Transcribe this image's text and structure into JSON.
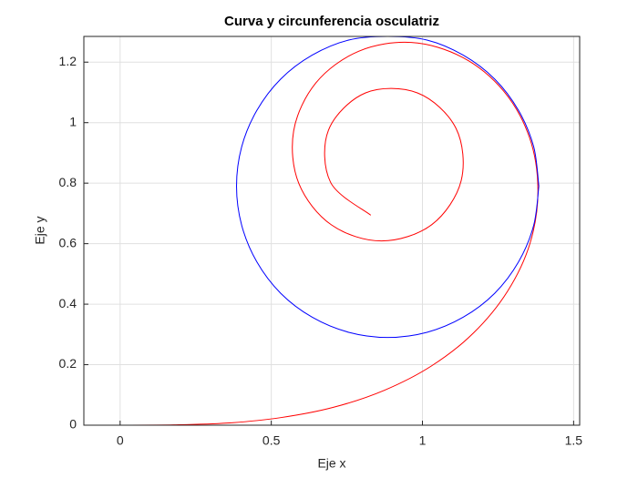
{
  "chart_data": {
    "type": "line",
    "title": "Curva y circunferencia osculatriz",
    "xlabel": "Eje x",
    "ylabel": "Eje y",
    "xlim": [
      -0.12,
      1.52
    ],
    "ylim": [
      0,
      1.285
    ],
    "xticks": [
      0,
      0.5,
      1,
      1.5
    ],
    "yticks": [
      0,
      0.2,
      0.4,
      0.6,
      0.8,
      1,
      1.2
    ],
    "grid": true,
    "series": [
      {
        "color": "#ff0000",
        "x": [
          0,
          0.177,
          0.354,
          0.531,
          0.705,
          0.873,
          1.03,
          1.169,
          1.281,
          1.356,
          1.382,
          1.354,
          1.268,
          1.132,
          0.963,
          0.789,
          0.648,
          0.574,
          0.591,
          0.699,
          0.865,
          1.031,
          1.128,
          1.111,
          0.984,
          0.811,
          0.689,
          0.696,
          0.829
        ],
        "values": [
          0,
          0.001,
          0.007,
          0.025,
          0.059,
          0.115,
          0.196,
          0.305,
          0.442,
          0.602,
          0.777,
          0.951,
          1.105,
          1.216,
          1.265,
          1.236,
          1.132,
          0.973,
          0.799,
          0.662,
          0.609,
          0.663,
          0.808,
          0.981,
          1.098,
          1.098,
          0.975,
          0.803,
          0.694
        ]
      },
      {
        "color": "#0000ff",
        "x": [
          1.385,
          1.368,
          1.318,
          1.239,
          1.135,
          1.015,
          0.885,
          0.756,
          0.635,
          0.531,
          0.452,
          0.402,
          0.385,
          0.402,
          0.452,
          0.531,
          0.635,
          0.756,
          0.885,
          1.015,
          1.135,
          1.239,
          1.318,
          1.368,
          1.385
        ],
        "values": [
          0.79,
          0.92,
          1.04,
          1.144,
          1.223,
          1.273,
          1.285,
          1.273,
          1.223,
          1.144,
          1.04,
          0.92,
          0.79,
          0.661,
          0.54,
          0.436,
          0.357,
          0.307,
          0.29,
          0.307,
          0.357,
          0.436,
          0.54,
          0.661,
          0.79
        ]
      }
    ]
  }
}
